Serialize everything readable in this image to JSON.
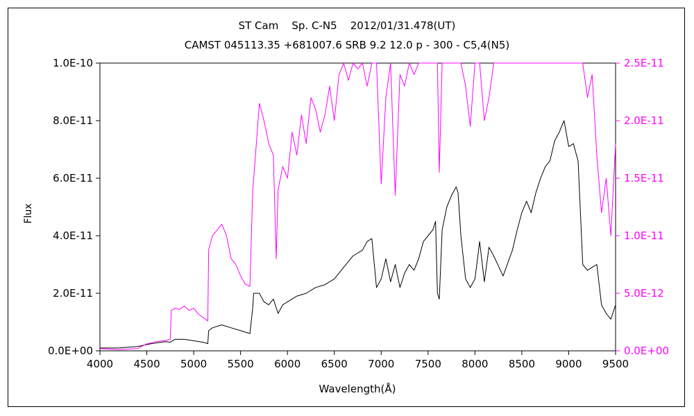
{
  "chart_data": {
    "type": "line",
    "title": "ST Cam    Sp. C-N5    2012/01/31.478(UT)",
    "subtitle": "CAMST 045113.35 +681007.6 SRB 9.2 12.0 p - 300 - C5,4(N5)",
    "xlabel": "Wavelength(Å)",
    "ylabel": "Flux",
    "xlim": [
      4000,
      9500
    ],
    "ylim_left": [
      0,
      1e-10
    ],
    "ylim_right": [
      0,
      2.5e-11
    ],
    "x_ticks": [
      "4000",
      "4500",
      "5000",
      "5500",
      "6000",
      "6500",
      "7000",
      "7500",
      "8000",
      "8500",
      "9000",
      "9500"
    ],
    "y_ticks_left": [
      "0.0E+00",
      "2.0E-11",
      "4.0E-11",
      "6.0E-11",
      "8.0E-11",
      "1.0E-10"
    ],
    "y_ticks_right": [
      "0.0E+00",
      "5.0E-12",
      "1.0E-11",
      "1.5E-11",
      "2.0E-11",
      "2.5E-11"
    ],
    "grid": false,
    "colors": {
      "left_series": "#000000",
      "right_series": "#ff00ff"
    },
    "series": [
      {
        "axis": "left",
        "x": [
          4000,
          4200,
          4400,
          4550,
          4650,
          4700,
          4750,
          4800,
          4900,
          5000,
          5100,
          5150,
          5160,
          5200,
          5300,
          5400,
          5500,
          5600,
          5630,
          5640,
          5700,
          5750,
          5800,
          5850,
          5900,
          5950,
          6000,
          6100,
          6200,
          6300,
          6400,
          6500,
          6600,
          6700,
          6800,
          6850,
          6900,
          6950,
          7000,
          7050,
          7100,
          7150,
          7200,
          7250,
          7300,
          7350,
          7400,
          7450,
          7500,
          7550,
          7580,
          7600,
          7620,
          7650,
          7700,
          7750,
          7800,
          7820,
          7850,
          7900,
          7950,
          8000,
          8050,
          8100,
          8150,
          8200,
          8300,
          8400,
          8450,
          8500,
          8550,
          8600,
          8650,
          8700,
          8750,
          8800,
          8850,
          8900,
          8950,
          9000,
          9050,
          9100,
          9150,
          9200,
          9250,
          9300,
          9350,
          9400,
          9450,
          9500
        ],
        "y": [
          1e-12,
          1e-12,
          1.5e-12,
          2.5e-12,
          3e-12,
          3.2e-12,
          3e-12,
          4e-12,
          4e-12,
          3.5e-12,
          3e-12,
          2.5e-12,
          7e-12,
          8e-12,
          9e-12,
          8e-12,
          7e-12,
          6e-12,
          1.5e-11,
          2e-11,
          2e-11,
          1.7e-11,
          1.6e-11,
          1.8e-11,
          1.3e-11,
          1.6e-11,
          1.7e-11,
          1.9e-11,
          2e-11,
          2.2e-11,
          2.3e-11,
          2.5e-11,
          2.9e-11,
          3.3e-11,
          3.5e-11,
          3.8e-11,
          3.9e-11,
          2.2e-11,
          2.5e-11,
          3.2e-11,
          2.4e-11,
          3e-11,
          2.2e-11,
          2.7e-11,
          3e-11,
          2.8e-11,
          3.2e-11,
          3.8e-11,
          4e-11,
          4.2e-11,
          4.5e-11,
          2e-11,
          1.8e-11,
          4.2e-11,
          5e-11,
          5.4e-11,
          5.7e-11,
          5.5e-11,
          4e-11,
          2.5e-11,
          2.2e-11,
          2.5e-11,
          3.8e-11,
          2.4e-11,
          3.6e-11,
          3.3e-11,
          2.6e-11,
          3.5e-11,
          4.2e-11,
          4.8e-11,
          5.2e-11,
          4.8e-11,
          5.5e-11,
          6e-11,
          6.4e-11,
          6.6e-11,
          7.3e-11,
          7.6e-11,
          8e-11,
          7.1e-11,
          7.2e-11,
          6.6e-11,
          3e-11,
          2.8e-11,
          2.9e-11,
          3e-11,
          1.6e-11,
          1.3e-11,
          1.1e-11,
          1.6e-11
        ]
      },
      {
        "axis": "right",
        "x": [
          4000,
          4200,
          4400,
          4500,
          4600,
          4700,
          4750,
          4760,
          4800,
          4850,
          4900,
          4950,
          5000,
          5050,
          5100,
          5150,
          5160,
          5200,
          5250,
          5300,
          5350,
          5400,
          5450,
          5500,
          5550,
          5600,
          5630,
          5650,
          5700,
          5750,
          5800,
          5850,
          5880,
          5900,
          5950,
          6000,
          6050,
          6100,
          6150,
          6200,
          6250,
          6300,
          6350,
          6400,
          6450,
          6500,
          6550,
          6600,
          6650,
          6700,
          6750,
          6800,
          6850,
          6900,
          6950,
          7000,
          7050,
          7100,
          7150,
          7200,
          7250,
          7300,
          7350,
          7400,
          7450,
          7500,
          7550,
          7600,
          7620,
          7650,
          7700,
          7750,
          7800,
          7850,
          7900,
          7950,
          8000,
          8050,
          8100,
          8150,
          8200,
          9150,
          9200,
          9250,
          9300,
          9350,
          9400,
          9450,
          9500
        ],
        "y": [
          2e-13,
          1e-13,
          2e-13,
          6e-13,
          8e-13,
          9e-13,
          1e-12,
          3.5e-12,
          3.7e-12,
          3.6e-12,
          3.9e-12,
          3.5e-12,
          3.7e-12,
          3.2e-12,
          2.9e-12,
          2.6e-12,
          8.8e-12,
          1e-11,
          1.05e-11,
          1.1e-11,
          1e-11,
          8e-12,
          7.5e-12,
          6.5e-12,
          5.8e-12,
          5.6e-12,
          1.4e-11,
          1.6e-11,
          2.15e-11,
          2e-11,
          1.8e-11,
          1.7e-11,
          8e-12,
          1.4e-11,
          1.6e-11,
          1.5e-11,
          1.9e-11,
          1.7e-11,
          2.05e-11,
          1.8e-11,
          2.2e-11,
          2.1e-11,
          1.9e-11,
          2.05e-11,
          2.3e-11,
          2e-11,
          2.4e-11,
          2.5e-11,
          2.35e-11,
          2.5e-11,
          2.45e-11,
          2.5e-11,
          2.3e-11,
          2.5e-11,
          2.5e-11,
          1.45e-11,
          2.2e-11,
          2.5e-11,
          1.35e-11,
          2.4e-11,
          2.3e-11,
          2.5e-11,
          2.4e-11,
          2.5e-11,
          2.5e-11,
          2.5e-11,
          2.5e-11,
          2.5e-11,
          1.55e-11,
          2.5e-11,
          2.5e-11,
          2.5e-11,
          2.5e-11,
          2.5e-11,
          2.3e-11,
          1.95e-11,
          2.5e-11,
          2.5e-11,
          2e-11,
          2.2e-11,
          2.5e-11,
          2.5e-11,
          2.2e-11,
          2.4e-11,
          1.7e-11,
          1.2e-11,
          1.5e-11,
          1e-11,
          1.8e-11
        ]
      }
    ]
  }
}
